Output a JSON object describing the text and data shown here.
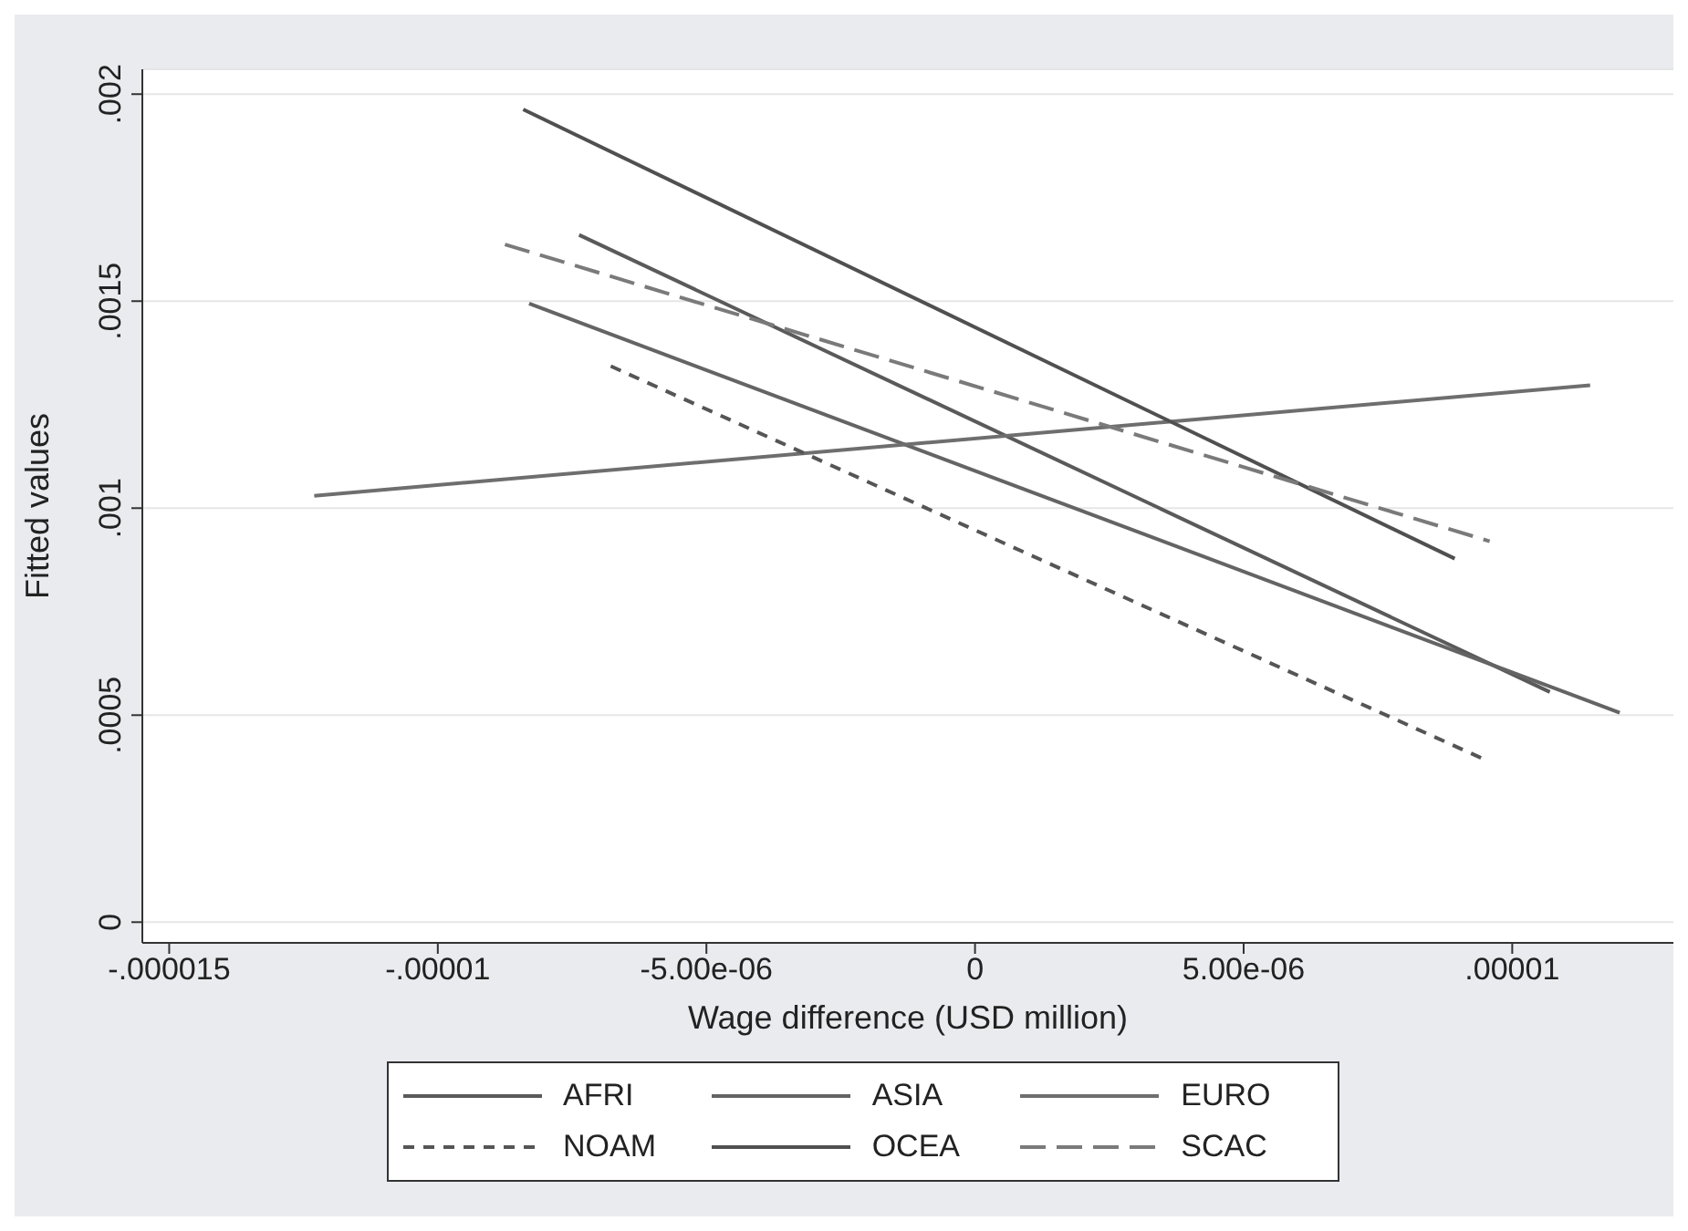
{
  "chart_data": {
    "type": "line",
    "xlabel": "Wage difference (USD million)",
    "ylabel": "Fitted values",
    "xlim": [
      -1.55e-05,
      1.3e-05
    ],
    "ylim": [
      -5e-05,
      0.00206
    ],
    "xticks": [
      {
        "value": -1.5e-05,
        "label": "-.000015"
      },
      {
        "value": -1e-05,
        "label": "-.00001"
      },
      {
        "value": -5e-06,
        "label": "-5.00e-06"
      },
      0,
      {
        "value": 5e-06,
        "label": "5.00e-06"
      },
      {
        "value": 1e-05,
        "label": ".00001"
      }
    ],
    "yticks": [
      0,
      {
        "value": 0.0005,
        "label": ".0005"
      },
      {
        "value": 0.001,
        "label": ".001"
      },
      {
        "value": 0.0015,
        "label": ".0015"
      },
      {
        "value": 0.002,
        "label": ".002"
      }
    ],
    "grid": "y",
    "legend": "bottom",
    "marker": "none",
    "series": [
      {
        "name": "AFRI",
        "color": "#5a5a5a",
        "line_style": "solid",
        "x": [
          -7.37e-06,
          1.07e-05
        ],
        "values": [
          0.00166,
          0.000556
        ]
      },
      {
        "name": "ASIA",
        "color": "#646464",
        "line_style": "solid",
        "x": [
          -8.3e-06,
          1.2e-05
        ],
        "values": [
          0.001494,
          0.000506
        ]
      },
      {
        "name": "EURO",
        "color": "#6e6e6e",
        "line_style": "solid",
        "x": [
          -1.23e-05,
          1.145e-05
        ],
        "values": [
          0.00103,
          0.001297
        ]
      },
      {
        "name": "NOAM",
        "color": "#555555",
        "line_style": "dashed",
        "x": [
          -6.78e-06,
          9.45e-06
        ],
        "values": [
          0.001343,
          0.000395
        ]
      },
      {
        "name": "OCEA",
        "color": "#505050",
        "line_style": "solid",
        "x": [
          -8.41e-06,
          8.93e-06
        ],
        "values": [
          0.001963,
          0.000878
        ]
      },
      {
        "name": "SCAC",
        "color": "#7a7a7a",
        "line_style": "dashed",
        "x": [
          -8.75e-06,
          9.58e-06
        ],
        "values": [
          0.001637,
          0.00092
        ]
      }
    ]
  }
}
